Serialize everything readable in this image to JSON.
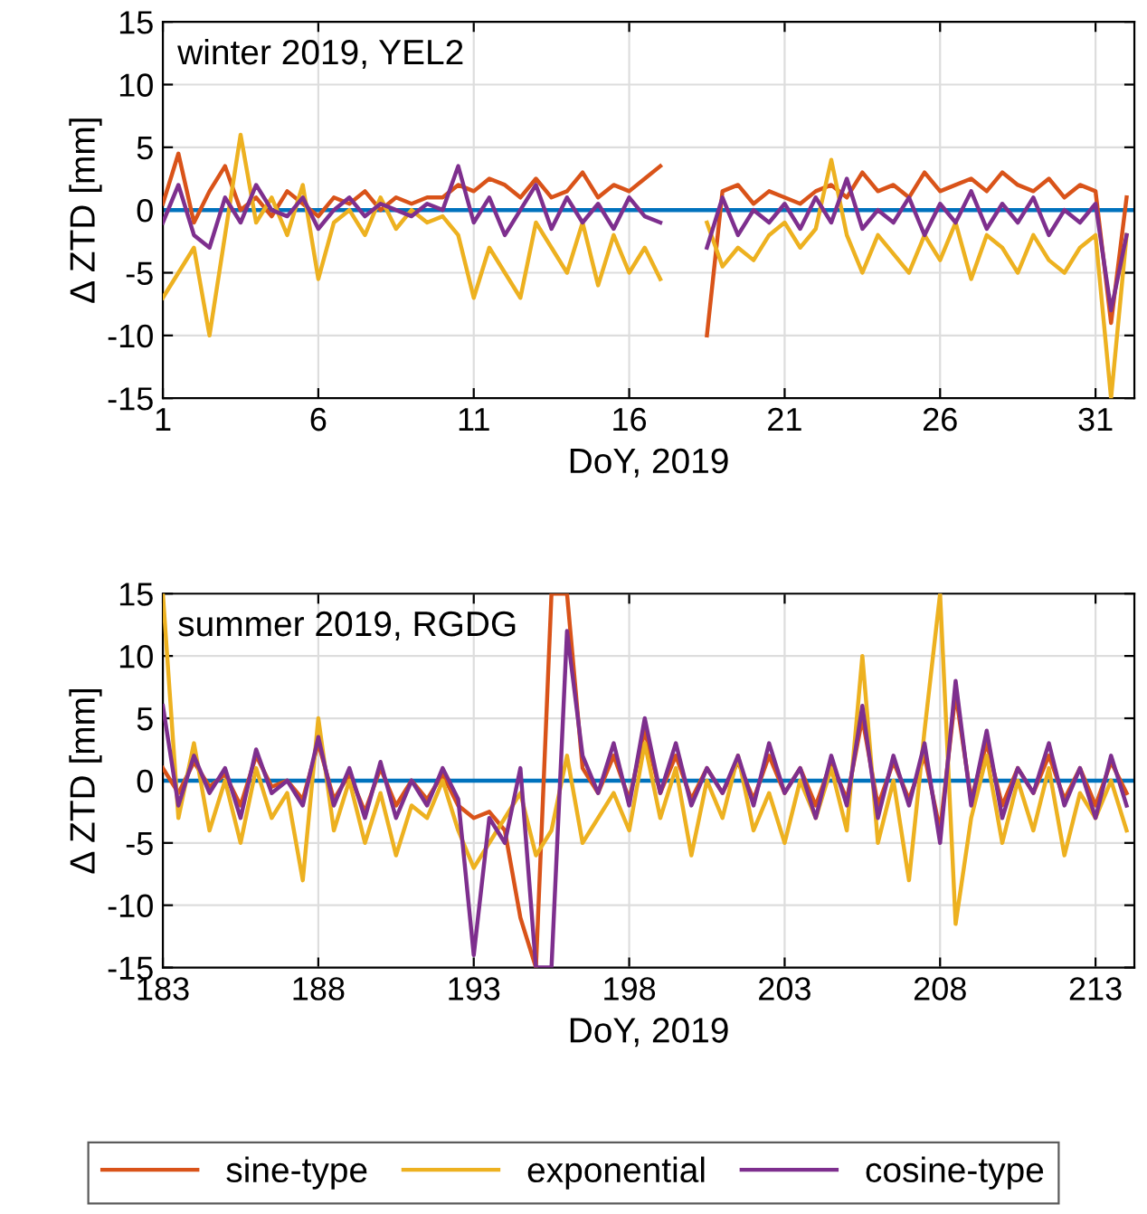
{
  "chart_data": [
    {
      "type": "line",
      "annotations": [
        "winter 2019, YEL2"
      ],
      "xlabel": "DoY, 2019",
      "ylabel": "Δ ZTD [mm]",
      "xlim": [
        1,
        32.25
      ],
      "xticks": [
        1,
        6,
        11,
        16,
        21,
        26,
        31
      ],
      "ylim": [
        -15,
        15
      ],
      "yticks": [
        -15,
        -10,
        -5,
        0,
        5,
        10,
        15
      ],
      "grid": true,
      "legend": "bottom",
      "line_style": "solid",
      "marker": "none",
      "x": [
        1,
        1.5,
        2,
        2.5,
        3,
        3.5,
        4,
        4.5,
        5,
        5.5,
        6,
        6.5,
        7,
        7.5,
        8,
        8.5,
        9,
        9.5,
        10,
        10.5,
        11,
        11.5,
        12,
        12.5,
        13,
        13.5,
        14,
        14.5,
        15,
        15.5,
        16,
        16.5,
        17,
        17.5,
        18,
        18.5,
        19,
        19.5,
        20,
        20.5,
        21,
        21.5,
        22,
        22.5,
        23,
        23.5,
        24,
        24.5,
        25,
        25.5,
        26,
        26.5,
        27,
        27.5,
        28,
        28.5,
        29,
        29.5,
        30,
        30.5,
        31,
        31.5,
        32
      ],
      "series": [
        {
          "color": "#0072bd",
          "x": [
            1,
            32.25
          ],
          "values": [
            0,
            0
          ]
        },
        {
          "name": "sine-type",
          "color": "#d95319",
          "values": [
            0.5,
            4.5,
            -1,
            1.5,
            3.5,
            0,
            1,
            -0.5,
            1.5,
            0.5,
            -0.5,
            1,
            0.5,
            1.5,
            0,
            1,
            0.5,
            1,
            1,
            2,
            1.5,
            2.5,
            2,
            1,
            2.5,
            1,
            1.5,
            3,
            1,
            2,
            1.5,
            2.5,
            3.5,
            null,
            null,
            -10,
            1.5,
            2,
            0.5,
            1.5,
            1,
            0.5,
            1.5,
            2,
            1,
            3,
            1.5,
            2,
            1,
            3,
            1.5,
            2,
            2.5,
            1.5,
            3,
            2,
            1.5,
            2.5,
            1,
            2,
            1.5,
            -9,
            1
          ]
        },
        {
          "name": "exponential",
          "color": "#edb120",
          "values": [
            -7,
            -5,
            -3,
            -10,
            -2,
            6,
            -1,
            1,
            -2,
            2,
            -5.5,
            -1,
            0,
            -2,
            1,
            -1.5,
            0,
            -1,
            -0.5,
            -2,
            -7,
            -3,
            -5,
            -7,
            -1,
            -3,
            -5,
            -1,
            -6,
            -2,
            -5,
            -3,
            -5.5,
            null,
            null,
            -1,
            -4.5,
            -3,
            -4,
            -2,
            -1,
            -3,
            -1.5,
            4,
            -2,
            -5,
            -2,
            -3.5,
            -5,
            -2,
            -4,
            -1,
            -5.5,
            -2,
            -3,
            -5,
            -2,
            -4,
            -5,
            -3,
            -2,
            -15,
            -2
          ]
        },
        {
          "name": "cosine-type",
          "color": "#7e2f8e",
          "values": [
            -1,
            2,
            -2,
            -3,
            1,
            -1,
            2,
            0,
            -0.5,
            1,
            -1.5,
            0,
            1,
            -0.5,
            0.5,
            0,
            -0.5,
            0.5,
            0,
            3.5,
            -1,
            1,
            -2,
            0,
            2,
            -1.5,
            1,
            -1,
            0.5,
            -1.5,
            1,
            -0.5,
            -1,
            null,
            null,
            -3,
            1,
            -2,
            0,
            -1,
            0.5,
            -1.5,
            1,
            -1,
            2.5,
            -1.5,
            0,
            -1,
            1,
            -2,
            0.5,
            -1,
            1.5,
            -1.5,
            0.5,
            -1,
            1,
            -2,
            0,
            -1,
            0.5,
            -8,
            -2
          ]
        }
      ]
    },
    {
      "type": "line",
      "annotations": [
        "summer 2019, RGDG"
      ],
      "xlabel": "DoY, 2019",
      "ylabel": "Δ ZTD [mm]",
      "xlim": [
        183,
        214.25
      ],
      "xticks": [
        183,
        188,
        193,
        198,
        203,
        208,
        213
      ],
      "ylim": [
        -15,
        15
      ],
      "yticks": [
        -15,
        -10,
        -5,
        0,
        5,
        10,
        15
      ],
      "grid": true,
      "legend": "bottom",
      "line_style": "solid",
      "marker": "none",
      "x": [
        183,
        183.5,
        184,
        184.5,
        185,
        185.5,
        186,
        186.5,
        187,
        187.5,
        188,
        188.5,
        189,
        189.5,
        190,
        190.5,
        191,
        191.5,
        192,
        192.5,
        193,
        193.5,
        194,
        194.5,
        195,
        195.5,
        196,
        196.5,
        197,
        197.5,
        198,
        198.5,
        199,
        199.5,
        200,
        200.5,
        201,
        201.5,
        202,
        202.5,
        203,
        203.5,
        204,
        204.5,
        205,
        205.5,
        206,
        206.5,
        207,
        207.5,
        208,
        208.5,
        209,
        209.5,
        210,
        210.5,
        211,
        211.5,
        212,
        212.5,
        213,
        213.5,
        214
      ],
      "series": [
        {
          "color": "#0072bd",
          "x": [
            183,
            214.25
          ],
          "values": [
            0,
            0
          ]
        },
        {
          "name": "sine-type",
          "color": "#d95319",
          "values": [
            1,
            -1,
            1.5,
            -0.5,
            0.5,
            -2,
            2,
            -0.5,
            0,
            -1.5,
            3,
            -1.5,
            0.5,
            -2.5,
            1,
            -2,
            0,
            -1.5,
            0.5,
            -2,
            -3,
            -2.5,
            -4,
            -11,
            -15,
            15,
            15,
            1,
            -1,
            2,
            -1.5,
            4,
            -1,
            2,
            -1.5,
            1,
            -1,
            1.5,
            -1.5,
            2,
            -1,
            1,
            -2,
            1.5,
            -1.5,
            5,
            -2,
            1.5,
            -1.5,
            2,
            -4,
            7,
            -1.5,
            3,
            -2,
            1,
            -1,
            2,
            -1.5,
            1,
            -2,
            1.5,
            -1
          ]
        },
        {
          "name": "exponential",
          "color": "#edb120",
          "values": [
            15,
            -3,
            3,
            -4,
            0,
            -5,
            1,
            -3,
            -1,
            -8,
            5,
            -4,
            0,
            -5,
            -1,
            -6,
            -2,
            -3,
            0,
            -4,
            -7,
            -5,
            -3,
            -1,
            -6,
            -4,
            2,
            -5,
            -3,
            -1,
            -4,
            3,
            -3,
            1,
            -6,
            0,
            -3,
            2,
            -4,
            -1,
            -5,
            0,
            -3,
            1,
            -4,
            10,
            -5,
            0,
            -8,
            4,
            15,
            -11.5,
            -3,
            2,
            -5,
            0,
            -4,
            1,
            -6,
            -1,
            -3,
            0,
            -4
          ]
        },
        {
          "name": "cosine-type",
          "color": "#7e2f8e",
          "values": [
            6,
            -2,
            2,
            -1,
            1,
            -3,
            2.5,
            -1,
            0,
            -2,
            3.5,
            -2,
            1,
            -3,
            1.5,
            -3,
            0,
            -2,
            1,
            -1.5,
            -14,
            -3,
            -5,
            1,
            -15,
            -15,
            12,
            2,
            -1,
            3,
            -2,
            5,
            -1,
            3,
            -2,
            1,
            -1,
            2,
            -2,
            3,
            -1,
            1,
            -3,
            2,
            -2,
            6,
            -3,
            2,
            -2,
            3,
            -5,
            8,
            -2,
            4,
            -3,
            1,
            -1,
            3,
            -2,
            1,
            -3,
            2,
            -2
          ]
        }
      ]
    }
  ]
}
